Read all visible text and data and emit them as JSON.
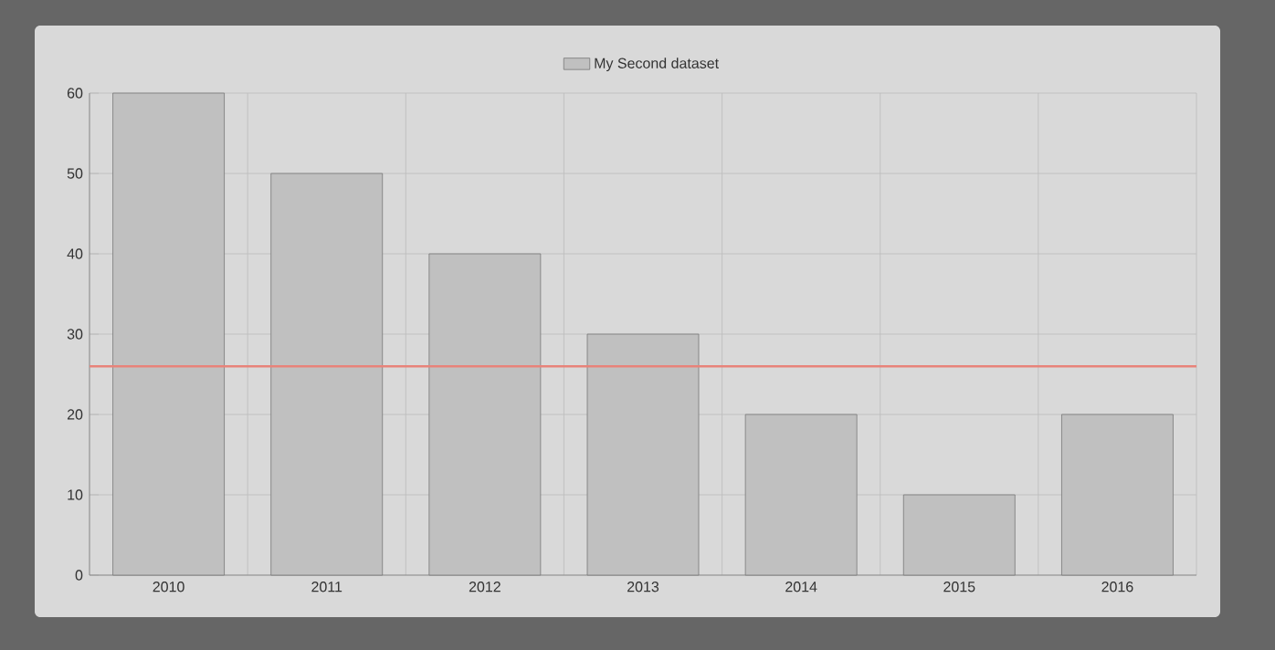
{
  "chart_data": {
    "type": "bar",
    "categories": [
      "2010",
      "2011",
      "2012",
      "2013",
      "2014",
      "2015",
      "2016"
    ],
    "series": [
      {
        "name": "My Second dataset",
        "color": "#c0c0c0",
        "values": [
          60,
          50,
          40,
          30,
          20,
          10,
          20
        ]
      }
    ],
    "ylim": [
      0,
      60
    ],
    "yticks": [
      0,
      10,
      20,
      30,
      40,
      50,
      60
    ],
    "grid": true,
    "legend": "top",
    "ref_lines": [
      {
        "axis": "y",
        "value": 26,
        "color": "#e8837a"
      }
    ]
  }
}
